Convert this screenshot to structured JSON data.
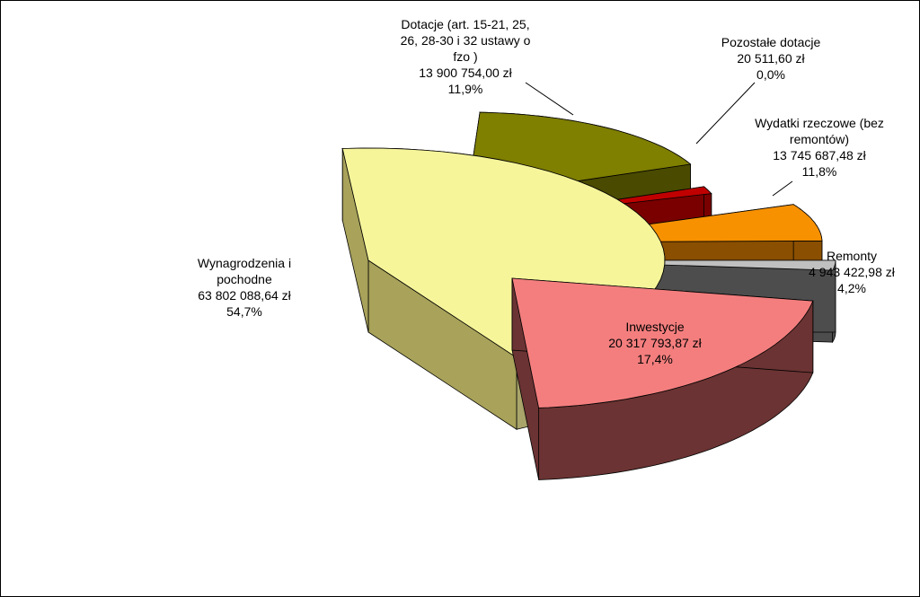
{
  "chart_data": {
    "type": "pie",
    "title": "",
    "series": [
      {
        "name": "",
        "slices": [
          {
            "key": "wyn",
            "label_lines": [
              "Wynagrodzenia i",
              "pochodne"
            ],
            "value_label": "63 802 088,64 zł",
            "percent_label": "54,7%",
            "value": 63802088.64,
            "percent": 54.7,
            "color": "#f6f59a",
            "side": "#a8a25a"
          },
          {
            "key": "dot",
            "label_lines": [
              "Dotacje (art. 15-21, 25,",
              "26, 28-30 i 32 ustawy o",
              "fzo )"
            ],
            "value_label": "13 900 754,00 zł",
            "percent_label": "11,9%",
            "value": 13900754.0,
            "percent": 11.9,
            "color": "#7f7f00",
            "side": "#4a4a00"
          },
          {
            "key": "poz",
            "label_lines": [
              "Pozostałe dotacje"
            ],
            "value_label": "20 511,60 zł",
            "percent_label": "0,0%",
            "value": 20511.6,
            "percent": 0.0,
            "color": "#c00000",
            "side": "#7a0000"
          },
          {
            "key": "wyd",
            "label_lines": [
              "Wydatki rzeczowe (bez",
              "remontów)"
            ],
            "value_label": "13 745 687,48 zł",
            "percent_label": "11,8%",
            "value": 13745687.48,
            "percent": 11.8,
            "color": "#f79100",
            "side": "#8a4f00"
          },
          {
            "key": "rem",
            "label_lines": [
              "Remonty"
            ],
            "value_label": "4 943 422,98 zł",
            "percent_label": "4,2%",
            "value": 4943422.98,
            "percent": 4.2,
            "color": "#c0c0c0",
            "side": "#4d4d4d"
          },
          {
            "key": "inw",
            "label_lines": [
              "Inwestycje"
            ],
            "value_label": "20 317 793,87 zł",
            "percent_label": "17,4%",
            "value": 20317793.87,
            "percent": 17.4,
            "color": "#f47e7e",
            "side": "#6b3333"
          }
        ]
      }
    ],
    "legend": "none",
    "style": "3d-exploded"
  }
}
